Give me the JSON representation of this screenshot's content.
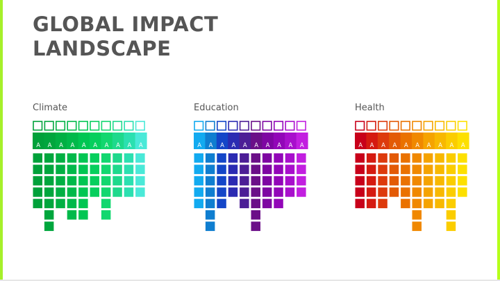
{
  "title": {
    "line1": "GLOBAL IMPACT",
    "line2": "LANDSCAPE"
  },
  "frame": {
    "left_color": "#a6f02a",
    "right_color": "#b6ff1a"
  },
  "panels": [
    {
      "id": "climate",
      "label": "Climate",
      "letter": "A",
      "colors": [
        "#00a13a",
        "#00a63d",
        "#00b043",
        "#00b94a",
        "#00c652",
        "#06cf5d",
        "#12d76f",
        "#1ed98c",
        "#2be0b0",
        "#4ae9d8"
      ],
      "levels": [
        0.56,
        0.78,
        0.56,
        0.67,
        0.67,
        0.44,
        0.67,
        0.44,
        0.44,
        0.44
      ]
    },
    {
      "id": "education",
      "label": "Education",
      "letter": "A",
      "colors": [
        "#12aaf0",
        "#0f7ed0",
        "#1446c8",
        "#2b2bb2",
        "#4c1e96",
        "#6b0f88",
        "#7e06a2",
        "#9206b8",
        "#a80fcc",
        "#c21fe0"
      ],
      "levels": [
        0.56,
        0.78,
        0.56,
        0.44,
        0.56,
        0.78,
        0.56,
        0.56,
        0.44,
        0.44
      ]
    },
    {
      "id": "health",
      "label": "Health",
      "letter": "A",
      "colors": [
        "#c8001a",
        "#d51a10",
        "#dd3a0c",
        "#e35a06",
        "#ea7200",
        "#f08800",
        "#f5a300",
        "#f8b800",
        "#fbcd00",
        "#fde000"
      ],
      "levels": [
        0.56,
        0.56,
        0.56,
        0.44,
        0.56,
        0.78,
        0.56,
        0.56,
        0.78,
        0.44
      ]
    }
  ]
}
